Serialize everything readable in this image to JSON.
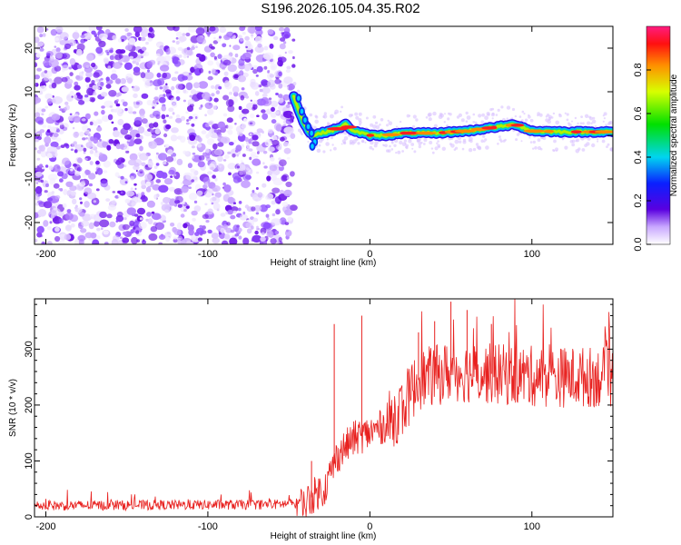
{
  "title": "S196.2026.105.04.35.R02",
  "colors": {
    "spectrogram_noise": "#8a2be2",
    "snr_line": "#e8201e",
    "axis": "#000000"
  },
  "chart_data": [
    {
      "type": "heatmap",
      "name": "spectrogram",
      "xlabel": "Height of straight line (km)",
      "ylabel": "Frequency (Hz)",
      "xlim": [
        -207,
        150
      ],
      "ylim": [
        -25,
        25
      ],
      "x_ticks": [
        -200,
        -100,
        0,
        100
      ],
      "x_tick_labels": [
        "-200",
        "-100",
        "0",
        "100"
      ],
      "y_ticks": [
        20,
        10,
        0,
        -10,
        -20
      ],
      "y_tick_labels": [
        "20",
        "10",
        "0",
        "-10",
        "-20"
      ],
      "noise_region": {
        "x_from": -207,
        "x_to": -47,
        "freq_from": -25,
        "freq_to": 25
      },
      "signal_track": {
        "x": [
          -48,
          -45,
          -42,
          -40,
          -38,
          -35,
          -30,
          -25,
          -20,
          -15,
          -10,
          -5,
          0,
          10,
          20,
          40,
          60,
          80,
          90,
          100,
          120,
          140,
          150
        ],
        "freq": [
          10,
          7,
          4,
          2.5,
          1,
          0,
          0.5,
          1,
          1.5,
          2.5,
          1,
          0.5,
          0,
          0,
          0.5,
          0.5,
          1,
          2,
          2.5,
          1,
          0.8,
          0.8,
          0.8
        ]
      },
      "colorbar": {
        "label": "Normalized spectral amplitude",
        "range": [
          0,
          1
        ],
        "ticks": [
          0.0,
          0.2,
          0.4,
          0.6,
          0.8
        ],
        "tick_labels": [
          "0.0",
          "0.2",
          "0.4",
          "0.6",
          "0.8"
        ]
      }
    },
    {
      "type": "line",
      "name": "snr",
      "xlabel": "Height of straight line (km)",
      "ylabel": "SNR (10 * v/v)",
      "xlim": [
        -207,
        150
      ],
      "ylim": [
        0,
        390
      ],
      "x_ticks": [
        -200,
        -100,
        0,
        100
      ],
      "x_tick_labels": [
        "-200",
        "-100",
        "0",
        "100"
      ],
      "y_ticks": [
        0,
        100,
        200,
        300
      ],
      "y_tick_labels": [
        "0",
        "100",
        "200",
        "300"
      ],
      "baseline_points": {
        "x": [
          -207,
          -60,
          -40,
          -32,
          -28,
          -20,
          -10,
          0,
          10,
          20,
          30,
          50,
          80,
          110,
          150
        ],
        "y": [
          20,
          22,
          25,
          45,
          50,
          110,
          140,
          150,
          165,
          195,
          245,
          260,
          255,
          250,
          250
        ]
      },
      "spikes": {
        "x": [
          -36,
          -34,
          -22,
          -5,
          30,
          40,
          50,
          60,
          75
        ],
        "y": [
          100,
          60,
          345,
          360,
          330,
          350,
          385,
          370,
          345
        ]
      }
    }
  ]
}
